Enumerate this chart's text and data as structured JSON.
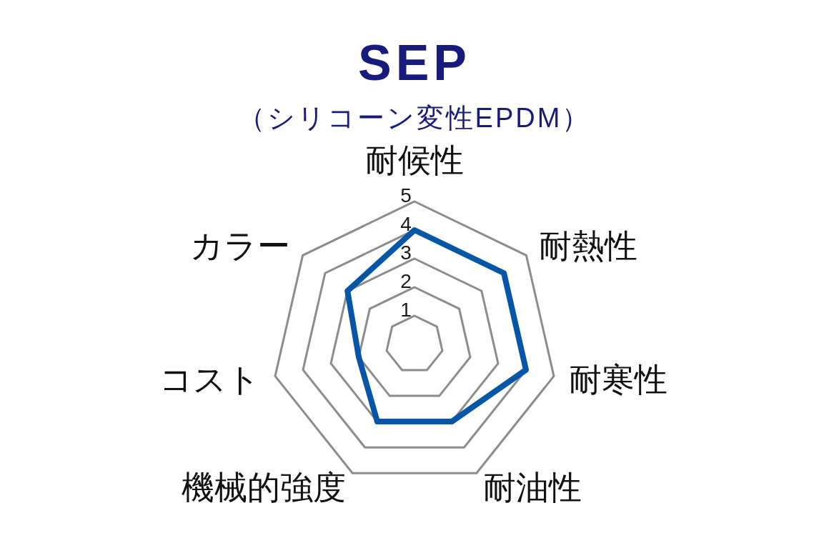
{
  "chart_data": {
    "type": "radar",
    "title": "SEP",
    "subtitle": "（シリコーン変性EPDM）",
    "categories": [
      "耐候性",
      "耐熱性",
      "耐寒性",
      "耐油性",
      "機械的強度",
      "コスト",
      "カラー"
    ],
    "series": [
      {
        "color": "#0656a8",
        "values": [
          4,
          4,
          4,
          3,
          3,
          2,
          3
        ]
      }
    ],
    "ylim": [
      0,
      5
    ],
    "yticks": [
      1,
      2,
      3,
      4,
      5
    ],
    "grid": true
  }
}
